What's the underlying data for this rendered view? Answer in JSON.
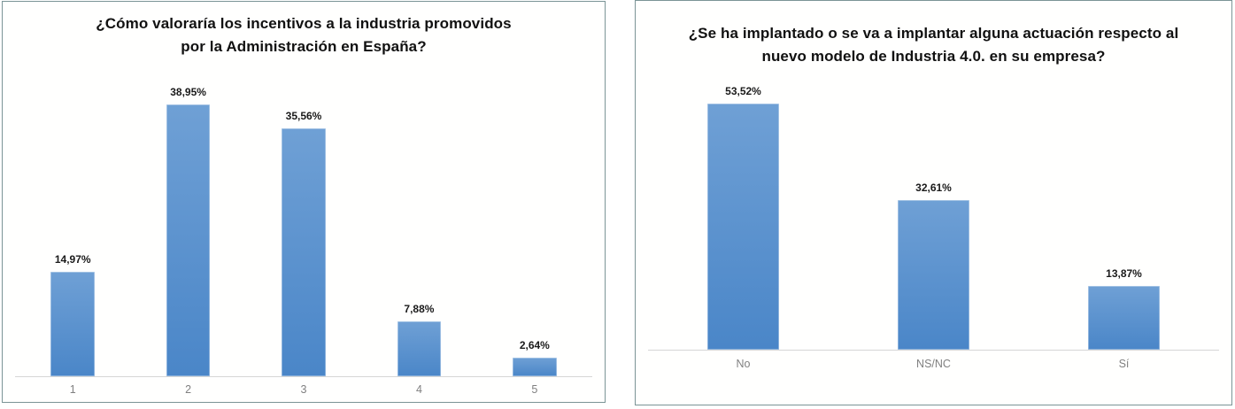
{
  "chart_data": [
    {
      "type": "bar",
      "title": "¿Cómo valoraría los incentivos a la industria promovidos por la Administración en España?",
      "categories": [
        "1",
        "2",
        "3",
        "4",
        "5"
      ],
      "values": [
        14.97,
        38.95,
        35.56,
        7.88,
        2.64
      ],
      "value_labels": [
        "14,97%",
        "38,95%",
        "35,56%",
        "7,88%",
        "2,64%"
      ],
      "ylabel": "",
      "xlabel": "",
      "ylim": [
        0,
        42
      ],
      "grid": false,
      "legend": "none"
    },
    {
      "type": "bar",
      "title": "¿Se ha implantado o se va a implantar alguna actuación respecto al nuevo modelo de Industria 4.0. en su empresa?",
      "categories": [
        "No",
        "NS/NC",
        "Sí"
      ],
      "values": [
        53.52,
        32.61,
        13.87
      ],
      "value_labels": [
        "53,52%",
        "32,61%",
        "13,87%"
      ],
      "ylabel": "",
      "xlabel": "",
      "ylim": [
        0,
        58
      ],
      "grid": false,
      "legend": "none"
    }
  ],
  "colors": {
    "bar_gradient_top": "#6fa0d5",
    "bar_gradient_bottom": "#4a86c8",
    "bar_base": "#5b9bd5",
    "panel_border": "#7b9496",
    "axis_line": "#d6d6d6",
    "tick_label": "#808080",
    "value_label": "#1a1a1a",
    "title_text": "#111111"
  }
}
